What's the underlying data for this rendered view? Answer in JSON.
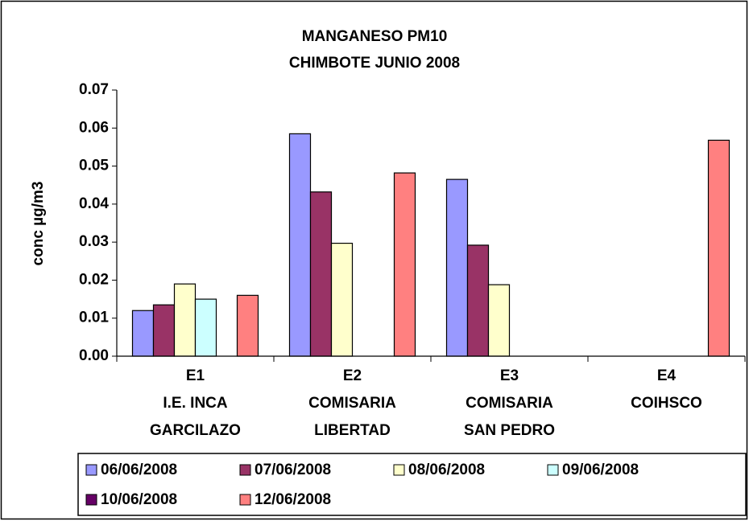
{
  "chart_data": {
    "type": "bar",
    "title": [
      "MANGANESO PM10",
      "CHIMBOTE JUNIO 2008"
    ],
    "y_label": "conc µg/m3",
    "categories": [
      [
        "E1",
        "I.E. INCA",
        "GARCILAZO"
      ],
      [
        "E2",
        "COMISARIA",
        "LIBERTAD"
      ],
      [
        "E3",
        "COMISARIA",
        "SAN PEDRO"
      ],
      [
        "E4",
        "COIHSCO"
      ]
    ],
    "series": [
      {
        "name": "06/06/2008",
        "color": "#9999ff",
        "values": [
          0.012,
          0.0585,
          0.0465,
          null
        ]
      },
      {
        "name": "07/06/2008",
        "color": "#993366",
        "values": [
          0.0135,
          0.0432,
          0.0292,
          null
        ]
      },
      {
        "name": "08/06/2008",
        "color": "#ffffcc",
        "values": [
          0.019,
          0.0297,
          0.0188,
          null
        ]
      },
      {
        "name": "09/06/2008",
        "color": "#ccffff",
        "values": [
          0.015,
          null,
          null,
          null
        ]
      },
      {
        "name": "10/06/2008",
        "color": "#660066",
        "values": [
          null,
          null,
          null,
          null
        ]
      },
      {
        "name": "12/06/2008",
        "color": "#ff8080",
        "values": [
          0.016,
          0.0482,
          null,
          0.0568
        ]
      }
    ],
    "ylim": [
      0,
      0.07
    ],
    "yticks": [
      {
        "value": 0,
        "label": "0.00"
      },
      0.01,
      0.02,
      0.03,
      0.04,
      0.05,
      0.06,
      0.07
    ],
    "grid": false,
    "legend": "bottom"
  }
}
